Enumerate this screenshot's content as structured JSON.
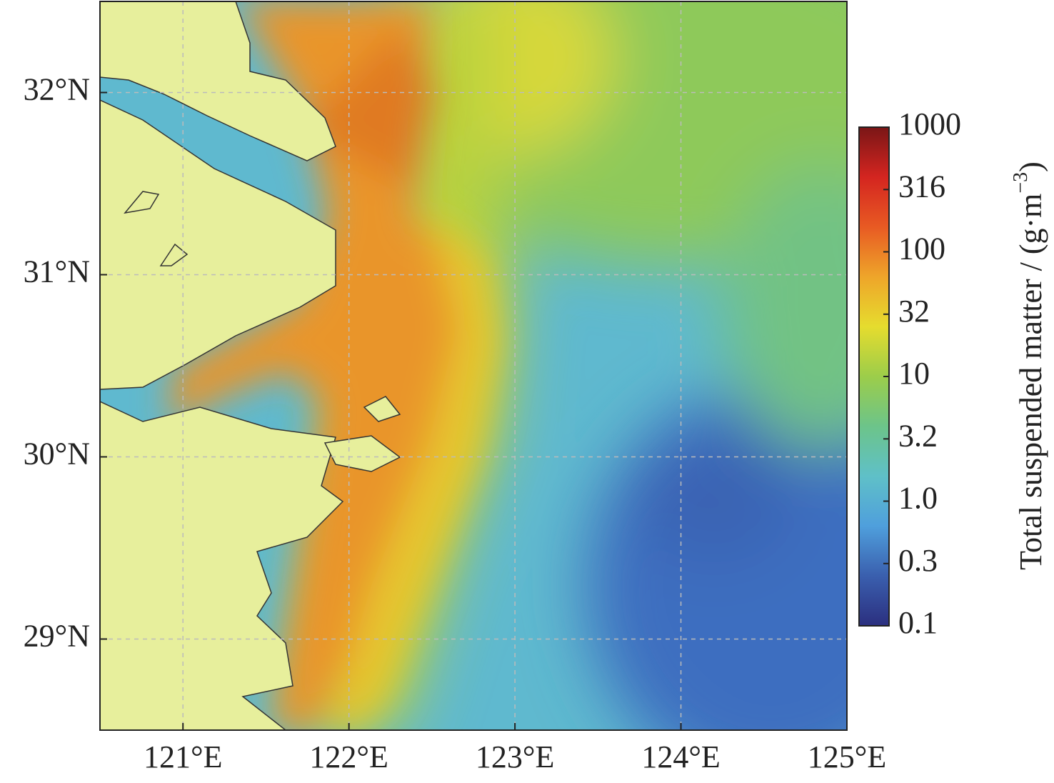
{
  "chart_data": {
    "type": "map",
    "xlim": [
      120.5,
      125
    ],
    "ylim": [
      28.5,
      32.5
    ],
    "xticks": [
      {
        "value": 121,
        "label": "121°E"
      },
      {
        "value": 122,
        "label": "122°E"
      },
      {
        "value": 123,
        "label": "123°E"
      },
      {
        "value": 124,
        "label": "124°E"
      },
      {
        "value": 125,
        "label": "125°E"
      }
    ],
    "yticks": [
      {
        "value": 29,
        "label": "29°N"
      },
      {
        "value": 30,
        "label": "30°N"
      },
      {
        "value": 31,
        "label": "31°N"
      },
      {
        "value": 32,
        "label": "32°N"
      }
    ],
    "grid": true,
    "colorbar": {
      "scale": "log",
      "lim": [
        0.1,
        1000
      ],
      "ticks": [
        0.1,
        {
          "value": 0.316,
          "label": "0.3"
        },
        {
          "value": 1,
          "label": "1.0"
        },
        {
          "value": 3.16,
          "label": "3.2"
        },
        10,
        {
          "value": 31.6,
          "label": "32"
        },
        100,
        316,
        1000
      ],
      "colors": [
        "#2b2f7f",
        "#3a5fae",
        "#4f9fdc",
        "#5fc0c8",
        "#6cc48a",
        "#9ccd4a",
        "#e6dc2e",
        "#eea52a",
        "#e85a23",
        "#d42520",
        "#7a1616"
      ],
      "title": {
        "text": "Total suspended matter / (g·m",
        "sup": "−3",
        "tail": ")"
      }
    }
  }
}
